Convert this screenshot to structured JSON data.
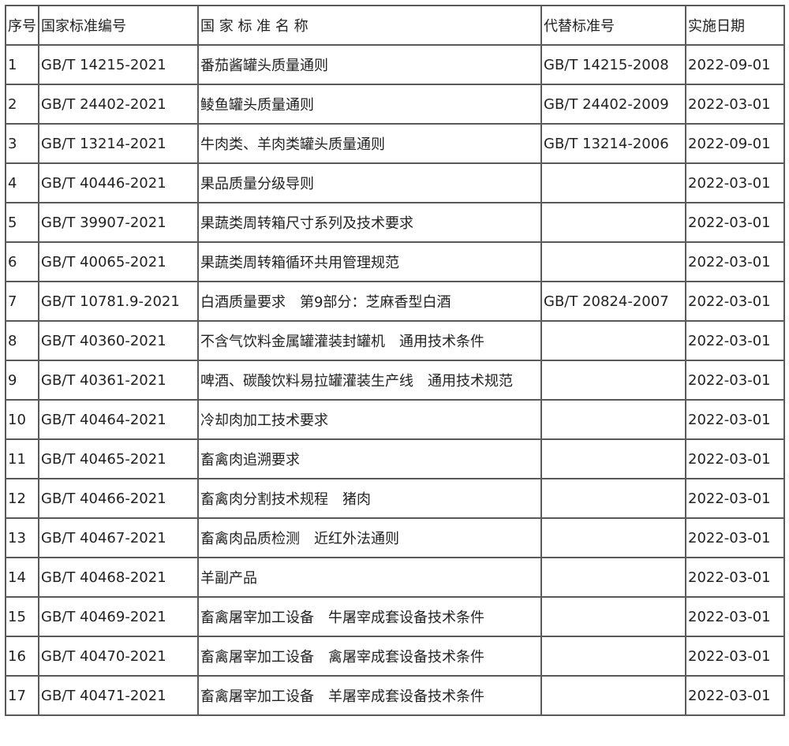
{
  "table": {
    "headers": [
      "序号",
      "国家标准编号",
      "国 家 标 准 名 称",
      "代替标准号",
      "实施日期"
    ],
    "rows": [
      [
        "1",
        "GB/T 14215-2021",
        "番茄酱罐头质量通则",
        "GB/T 14215-2008",
        "2022-09-01"
      ],
      [
        "2",
        "GB/T 24402-2021",
        "鲮鱼罐头质量通则",
        "GB/T 24402-2009",
        "2022-03-01"
      ],
      [
        "3",
        "GB/T 13214-2021",
        "牛肉类、羊肉类罐头质量通则",
        "GB/T 13214-2006",
        "2022-09-01"
      ],
      [
        "4",
        "GB/T 40446-2021",
        "果品质量分级导则",
        "",
        "2022-03-01"
      ],
      [
        "5",
        "GB/T 39907-2021",
        "果蔬类周转箱尺寸系列及技术要求",
        "",
        "2022-03-01"
      ],
      [
        "6",
        "GB/T 40065-2021",
        "果蔬类周转箱循环共用管理规范",
        "",
        "2022-03-01"
      ],
      [
        "7",
        "GB/T 10781.9-2021",
        "白酒质量要求　第9部分：芝麻香型白酒",
        "GB/T 20824-2007",
        "2022-03-01"
      ],
      [
        "8",
        "GB/T 40360-2021",
        "不含气饮料金属罐灌装封罐机　通用技术条件",
        "",
        "2022-03-01"
      ],
      [
        "9",
        "GB/T 40361-2021",
        "啤酒、碳酸饮料易拉罐灌装生产线　通用技术规范",
        "",
        "2022-03-01"
      ],
      [
        "10",
        "GB/T 40464-2021",
        "冷却肉加工技术要求",
        "",
        "2022-03-01"
      ],
      [
        "11",
        "GB/T 40465-2021",
        "畜禽肉追溯要求",
        "",
        "2022-03-01"
      ],
      [
        "12",
        "GB/T 40466-2021",
        "畜禽肉分割技术规程　猪肉",
        "",
        "2022-03-01"
      ],
      [
        "13",
        "GB/T 40467-2021",
        "畜禽肉品质检测　近红外法通则",
        "",
        "2022-03-01"
      ],
      [
        "14",
        "GB/T 40468-2021",
        "羊副产品",
        "",
        "2022-03-01"
      ],
      [
        "15",
        "GB/T 40469-2021",
        "畜禽屠宰加工设备　牛屠宰成套设备技术条件",
        "",
        "2022-03-01"
      ],
      [
        "16",
        "GB/T 40470-2021",
        "畜禽屠宰加工设备　禽屠宰成套设备技术条件",
        "",
        "2022-03-01"
      ],
      [
        "17",
        "GB/T 40471-2021",
        "畜禽屠宰加工设备　羊屠宰成套设备技术条件",
        "",
        "2022-03-01"
      ]
    ]
  }
}
